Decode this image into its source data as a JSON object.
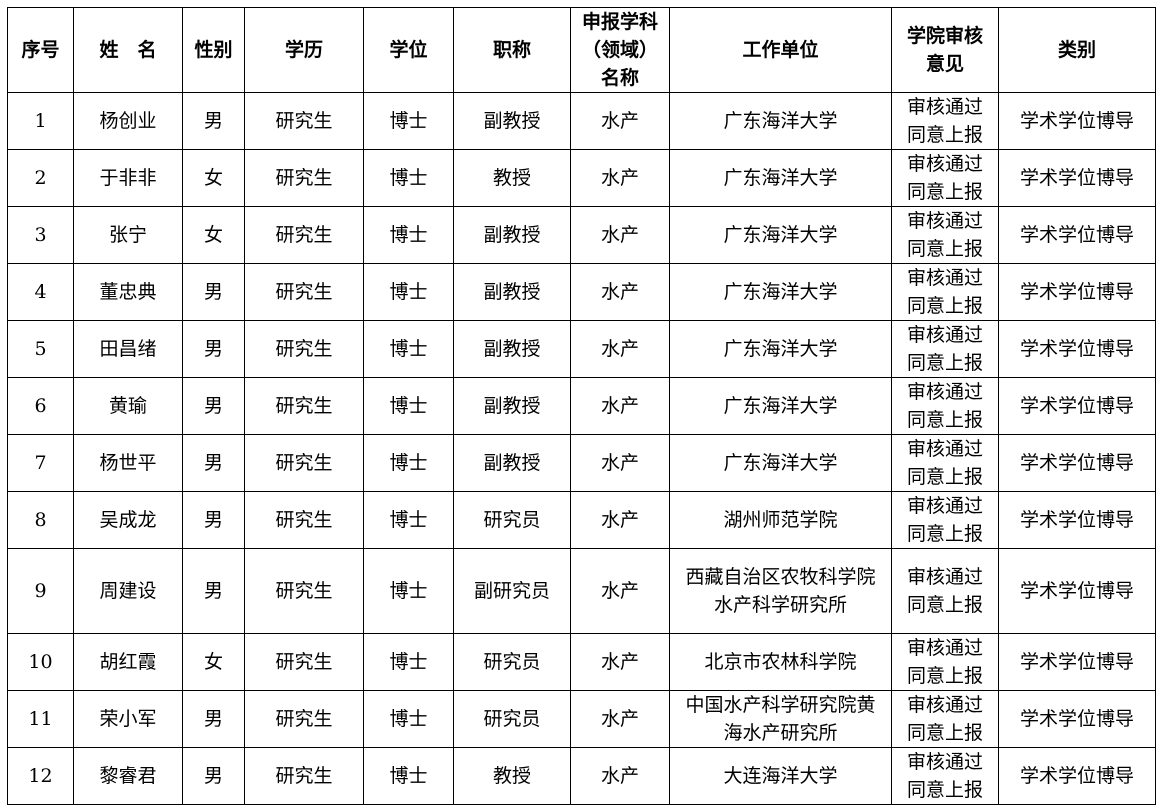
{
  "headers": [
    "序号",
    "姓　名",
    "性别",
    "学历",
    "学位",
    "职称",
    "申报学科（领域）名称",
    "工作单位",
    "学院审核意见",
    "类别"
  ],
  "rows": [
    {
      "no": "1",
      "name": "杨创业",
      "gender": "男",
      "education": "研究生",
      "degree": "博士",
      "title": "副教授",
      "field": "水产",
      "unit": "广东海洋大学",
      "opinion": "审核通过同意上报",
      "category": "学术学位博导"
    },
    {
      "no": "2",
      "name": "于非非",
      "gender": "女",
      "education": "研究生",
      "degree": "博士",
      "title": "教授",
      "field": "水产",
      "unit": "广东海洋大学",
      "opinion": "审核通过同意上报",
      "category": "学术学位博导"
    },
    {
      "no": "3",
      "name": "张宁",
      "gender": "女",
      "education": "研究生",
      "degree": "博士",
      "title": "副教授",
      "field": "水产",
      "unit": "广东海洋大学",
      "opinion": "审核通过同意上报",
      "category": "学术学位博导"
    },
    {
      "no": "4",
      "name": "董忠典",
      "gender": "男",
      "education": "研究生",
      "degree": "博士",
      "title": "副教授",
      "field": "水产",
      "unit": "广东海洋大学",
      "opinion": "审核通过同意上报",
      "category": "学术学位博导"
    },
    {
      "no": "5",
      "name": "田昌绪",
      "gender": "男",
      "education": "研究生",
      "degree": "博士",
      "title": "副教授",
      "field": "水产",
      "unit": "广东海洋大学",
      "opinion": "审核通过同意上报",
      "category": "学术学位博导"
    },
    {
      "no": "6",
      "name": "黄瑜",
      "gender": "男",
      "education": "研究生",
      "degree": "博士",
      "title": "副教授",
      "field": "水产",
      "unit": "广东海洋大学",
      "opinion": "审核通过同意上报",
      "category": "学术学位博导"
    },
    {
      "no": "7",
      "name": "杨世平",
      "gender": "男",
      "education": "研究生",
      "degree": "博士",
      "title": "副教授",
      "field": "水产",
      "unit": "广东海洋大学",
      "opinion": "审核通过同意上报",
      "category": "学术学位博导"
    },
    {
      "no": "8",
      "name": "吴成龙",
      "gender": "男",
      "education": "研究生",
      "degree": "博士",
      "title": "研究员",
      "field": "水产",
      "unit": "湖州师范学院",
      "opinion": "审核通过同意上报",
      "category": "学术学位博导"
    },
    {
      "no": "9",
      "name": "周建设",
      "gender": "男",
      "education": "研究生",
      "degree": "博士",
      "title": "副研究员",
      "field": "水产",
      "unit": "西藏自治区农牧科学院水产科学研究所",
      "opinion": "审核通过同意上报",
      "category": "学术学位博导"
    },
    {
      "no": "10",
      "name": "胡红霞",
      "gender": "女",
      "education": "研究生",
      "degree": "博士",
      "title": "研究员",
      "field": "水产",
      "unit": "北京市农林科学院",
      "opinion": "审核通过同意上报",
      "category": "学术学位博导"
    },
    {
      "no": "11",
      "name": "荣小军",
      "gender": "男",
      "education": "研究生",
      "degree": "博士",
      "title": "研究员",
      "field": "水产",
      "unit": "中国水产科学研究院黄海水产研究所",
      "opinion": "审核通过同意上报",
      "category": "学术学位博导"
    },
    {
      "no": "12",
      "name": "黎睿君",
      "gender": "男",
      "education": "研究生",
      "degree": "博士",
      "title": "教授",
      "field": "水产",
      "unit": "大连海洋大学",
      "opinion": "审核通过同意上报",
      "category": "学术学位博导"
    }
  ]
}
